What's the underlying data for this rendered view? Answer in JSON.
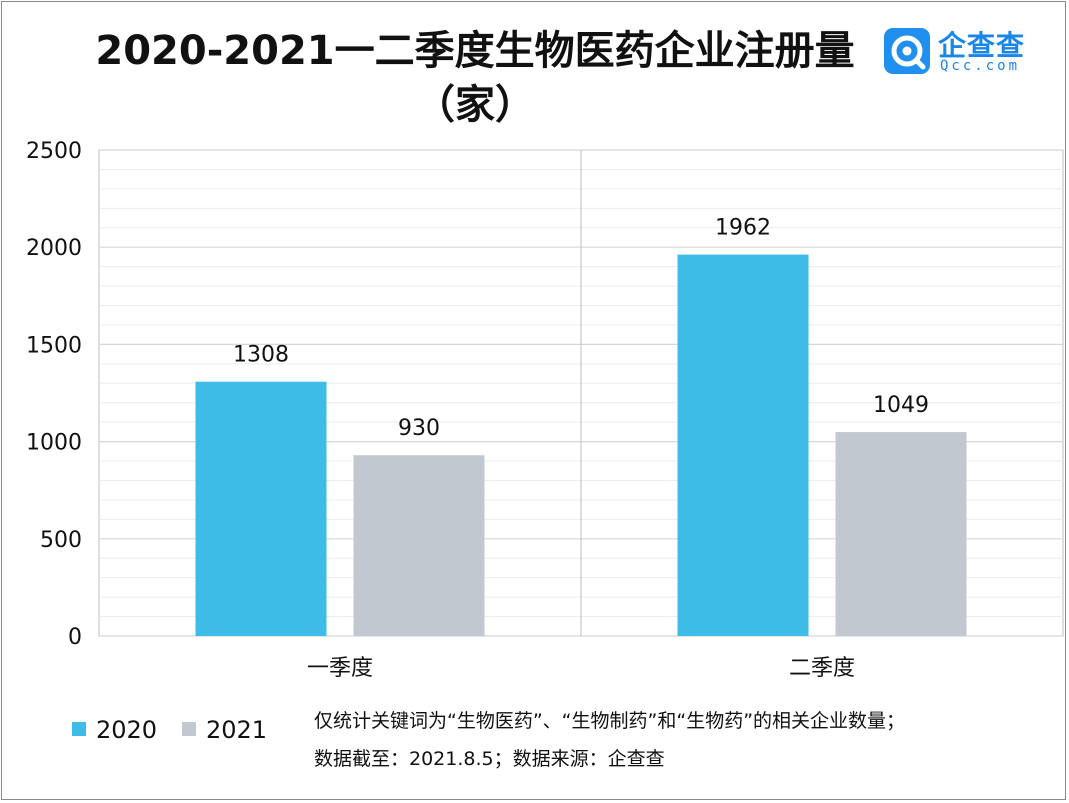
{
  "title": "2020-2021一二季度生物医药企业注册量（家）",
  "logo": {
    "name": "企查查",
    "sub": "Qcc.com"
  },
  "colors": {
    "2020": "#3dbce8",
    "2021": "#c2c8d0",
    "grid": "#d7d7d7",
    "axis": "#bdbdbd"
  },
  "chart_data": {
    "type": "bar",
    "title": "2020-2021一二季度生物医药企业注册量（家）",
    "categories": [
      "一季度",
      "二季度"
    ],
    "series": [
      {
        "name": "2020",
        "values": [
          1308,
          1962
        ]
      },
      {
        "name": "2021",
        "values": [
          930,
          1049
        ]
      }
    ],
    "ylim": [
      0,
      2500
    ],
    "yticks": [
      0,
      500,
      1000,
      1500,
      2000,
      2500
    ],
    "grid": true,
    "legend_position": "bottom-left",
    "data_labels": true
  },
  "notes": [
    "仅统计关键词为“生物医药”、“生物制药”和“生物药”的相关企业数量；",
    "数据截至：2021.8.5；数据来源：企查查"
  ]
}
